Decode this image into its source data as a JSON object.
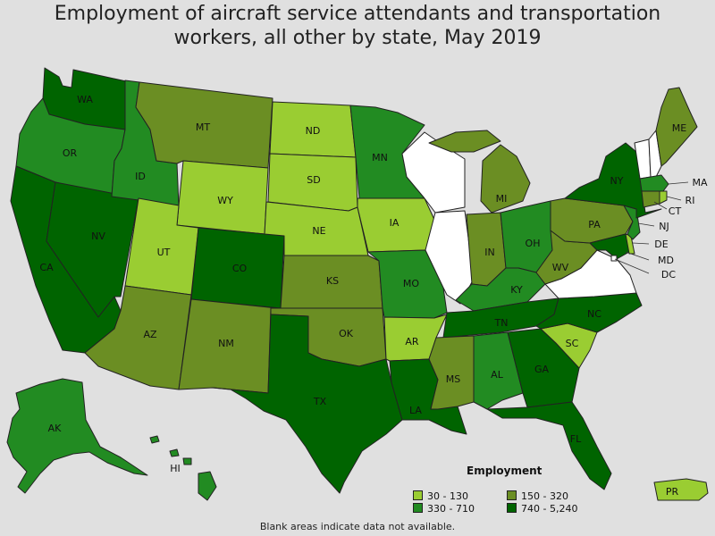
{
  "title_line1": "Employment of aircraft service attendants and transportation",
  "title_line2": "workers, all other by state, May 2019",
  "legend": {
    "title": "Employment",
    "items": [
      {
        "label": "30 - 130",
        "color": "#9acd32"
      },
      {
        "label": "150 - 320",
        "color": "#6b8e23"
      },
      {
        "label": "330 - 710",
        "color": "#228b22"
      },
      {
        "label": "740 - 5,240",
        "color": "#006400"
      }
    ]
  },
  "no_data_color": "#ffffff",
  "footnote": "Blank areas indicate data not available.",
  "states": [
    {
      "abbr": "WA",
      "bin": "740 - 5,240"
    },
    {
      "abbr": "OR",
      "bin": "330 - 710"
    },
    {
      "abbr": "CA",
      "bin": "740 - 5,240"
    },
    {
      "abbr": "NV",
      "bin": "740 - 5,240"
    },
    {
      "abbr": "ID",
      "bin": "330 - 710"
    },
    {
      "abbr": "MT",
      "bin": "150 - 320"
    },
    {
      "abbr": "WY",
      "bin": "30 - 130"
    },
    {
      "abbr": "UT",
      "bin": "30 - 130"
    },
    {
      "abbr": "AZ",
      "bin": "150 - 320"
    },
    {
      "abbr": "CO",
      "bin": "740 - 5,240"
    },
    {
      "abbr": "NM",
      "bin": "150 - 320"
    },
    {
      "abbr": "ND",
      "bin": "30 - 130"
    },
    {
      "abbr": "SD",
      "bin": "30 - 130"
    },
    {
      "abbr": "NE",
      "bin": "30 - 130"
    },
    {
      "abbr": "KS",
      "bin": "150 - 320"
    },
    {
      "abbr": "OK",
      "bin": "150 - 320"
    },
    {
      "abbr": "TX",
      "bin": "740 - 5,240"
    },
    {
      "abbr": "MN",
      "bin": "330 - 710"
    },
    {
      "abbr": "IA",
      "bin": "30 - 130"
    },
    {
      "abbr": "MO",
      "bin": "330 - 710"
    },
    {
      "abbr": "AR",
      "bin": "30 - 130"
    },
    {
      "abbr": "LA",
      "bin": "740 - 5,240"
    },
    {
      "abbr": "WI",
      "bin": null
    },
    {
      "abbr": "IL",
      "bin": null
    },
    {
      "abbr": "MI",
      "bin": "150 - 320"
    },
    {
      "abbr": "IN",
      "bin": "150 - 320"
    },
    {
      "abbr": "OH",
      "bin": "330 - 710"
    },
    {
      "abbr": "KY",
      "bin": "330 - 710"
    },
    {
      "abbr": "TN",
      "bin": "740 - 5,240"
    },
    {
      "abbr": "MS",
      "bin": "150 - 320"
    },
    {
      "abbr": "AL",
      "bin": "330 - 710"
    },
    {
      "abbr": "GA",
      "bin": "740 - 5,240"
    },
    {
      "abbr": "FL",
      "bin": "740 - 5,240"
    },
    {
      "abbr": "SC",
      "bin": "30 - 130"
    },
    {
      "abbr": "NC",
      "bin": "740 - 5,240"
    },
    {
      "abbr": "VA",
      "bin": null
    },
    {
      "abbr": "WV",
      "bin": "150 - 320"
    },
    {
      "abbr": "PA",
      "bin": "150 - 320"
    },
    {
      "abbr": "NY",
      "bin": "740 - 5,240"
    },
    {
      "abbr": "VT",
      "bin": null
    },
    {
      "abbr": "NH",
      "bin": null
    },
    {
      "abbr": "ME",
      "bin": "150 - 320"
    },
    {
      "abbr": "MA",
      "bin": "330 - 710"
    },
    {
      "abbr": "RI",
      "bin": "30 - 130"
    },
    {
      "abbr": "CT",
      "bin": "150 - 320"
    },
    {
      "abbr": "NJ",
      "bin": "330 - 710"
    },
    {
      "abbr": "DE",
      "bin": "30 - 130"
    },
    {
      "abbr": "MD",
      "bin": "740 - 5,240"
    },
    {
      "abbr": "DC",
      "bin": null
    },
    {
      "abbr": "AK",
      "bin": "330 - 710"
    },
    {
      "abbr": "HI",
      "bin": "330 - 710"
    },
    {
      "abbr": "PR",
      "bin": "30 - 130"
    }
  ]
}
